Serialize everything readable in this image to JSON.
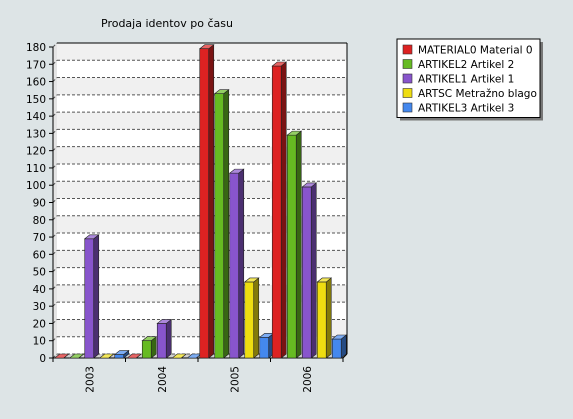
{
  "chart_data": {
    "type": "bar",
    "title": "Prodaja identov po času",
    "xlabel": "",
    "ylabel": "",
    "categories": [
      "2003",
      "2004",
      "2005",
      "2006"
    ],
    "ylim": [
      0,
      180
    ],
    "yticks": [
      0,
      10,
      20,
      30,
      40,
      50,
      60,
      70,
      80,
      90,
      100,
      110,
      120,
      130,
      140,
      150,
      160,
      170,
      180
    ],
    "grid": true,
    "legend_position": "top-right",
    "series": [
      {
        "name": "MATERIAL0  Material 0",
        "color": "#dd2222",
        "values": [
          0,
          0,
          179,
          169
        ]
      },
      {
        "name": "ARTIKEL2  Artikel 2",
        "color": "#66bb22",
        "values": [
          0,
          10,
          153,
          129
        ]
      },
      {
        "name": "ARTIKEL1  Artikel 1",
        "color": "#8855cc",
        "values": [
          69,
          20,
          107,
          99
        ]
      },
      {
        "name": "ARTSC  Metražno blago",
        "color": "#eedd11",
        "values": [
          0,
          0,
          44,
          44
        ]
      },
      {
        "name": "ARTIKEL3  Artikel 3",
        "color": "#4488ee",
        "values": [
          2,
          0,
          12,
          11
        ]
      }
    ]
  }
}
